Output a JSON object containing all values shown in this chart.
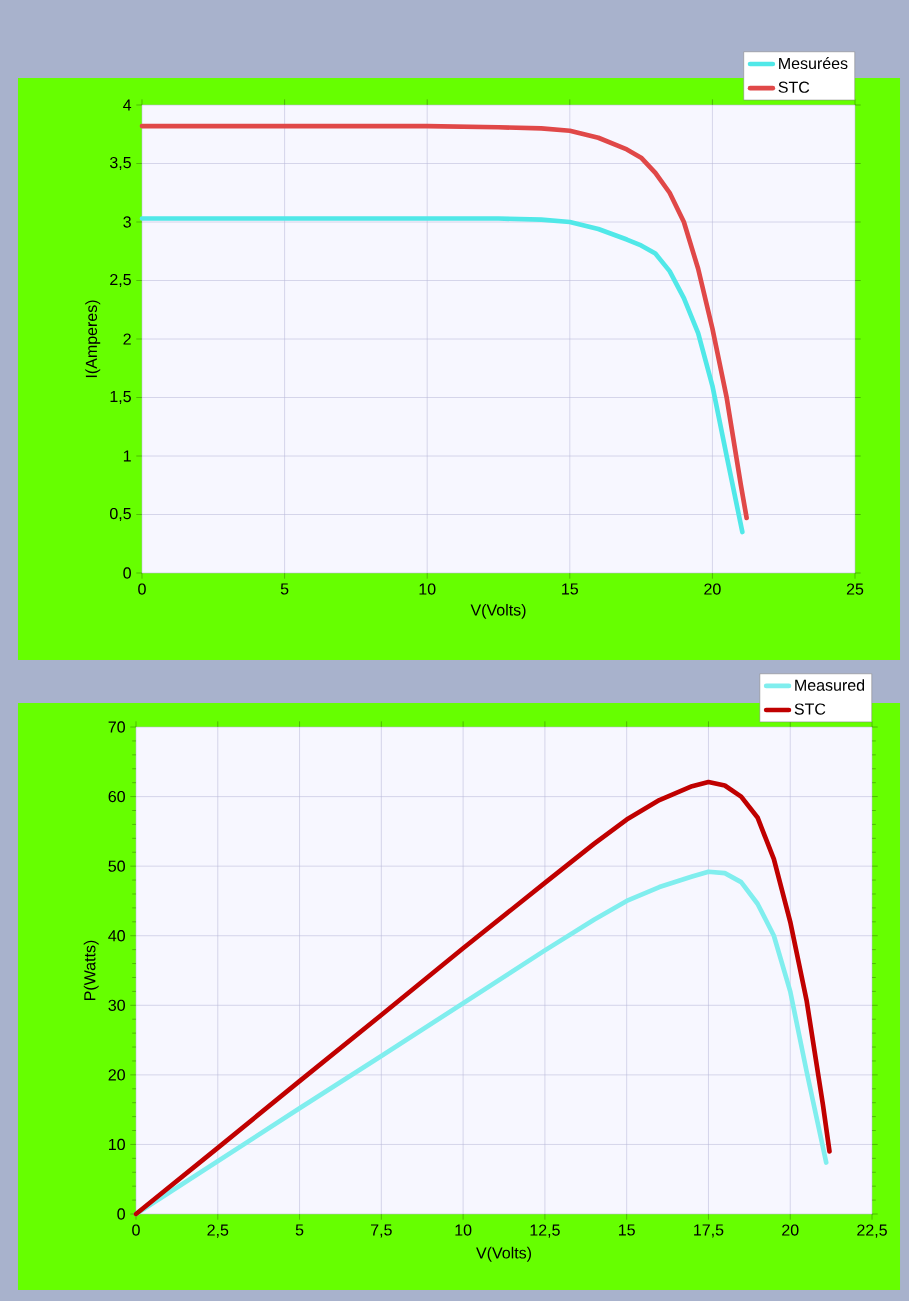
{
  "chart_data": [
    {
      "type": "line",
      "xlabel": "V(Volts)",
      "ylabel": "I(Amperes)",
      "grid": true,
      "legend": "top right",
      "xlim": [
        0,
        25
      ],
      "xticks": [
        0,
        5,
        10,
        15,
        20,
        25
      ],
      "ylim": [
        0,
        4
      ],
      "yticks": [
        0,
        {
          "value": 0.5,
          "label": "0,5"
        },
        1,
        {
          "value": 1.5,
          "label": "1,5"
        },
        2,
        {
          "value": 2.5,
          "label": "2,5"
        },
        3,
        {
          "value": 3.5,
          "label": "3,5"
        },
        4
      ],
      "series": [
        {
          "name": "Mesurées",
          "color": "#50e8e8",
          "x": [
            0,
            5,
            10,
            12.5,
            14,
            15,
            16,
            17,
            17.5,
            18,
            18.5,
            19,
            19.5,
            20,
            20.5,
            21.05
          ],
          "values": [
            3.03,
            3.03,
            3.03,
            3.03,
            3.02,
            3.0,
            2.94,
            2.85,
            2.8,
            2.73,
            2.58,
            2.35,
            2.05,
            1.6,
            1.0,
            0.35
          ]
        },
        {
          "name": "STC",
          "color": "#e04848",
          "x": [
            0,
            5,
            10,
            12.5,
            14,
            15,
            16,
            17,
            17.5,
            18,
            18.5,
            19,
            19.5,
            20,
            20.5,
            21,
            21.2
          ],
          "values": [
            3.82,
            3.82,
            3.82,
            3.81,
            3.8,
            3.78,
            3.72,
            3.62,
            3.55,
            3.42,
            3.25,
            3.0,
            2.6,
            2.09,
            1.5,
            0.75,
            0.47
          ]
        }
      ]
    },
    {
      "type": "line",
      "xlabel": "V(Volts)",
      "ylabel": "P(Watts)",
      "grid": true,
      "legend": "top right",
      "xlim": [
        0,
        22.5
      ],
      "xticks": [
        0,
        {
          "value": 2.5,
          "label": "2,5"
        },
        5,
        {
          "value": 7.5,
          "label": "7,5"
        },
        10,
        {
          "value": 12.5,
          "label": "12,5"
        },
        15,
        {
          "value": 17.5,
          "label": "17,5"
        },
        20,
        {
          "value": 22.5,
          "label": "22,5"
        }
      ],
      "ylim": [
        0,
        70
      ],
      "yticks": [
        0,
        10,
        20,
        30,
        40,
        50,
        60,
        70
      ],
      "series": [
        {
          "name": "Measured",
          "color": "#80eeee",
          "x": [
            0,
            2.5,
            5,
            7.5,
            10,
            12.5,
            14,
            15,
            16,
            17,
            17.5,
            18,
            18.5,
            19,
            19.5,
            20,
            20.5,
            21.1
          ],
          "values": [
            0,
            7.6,
            15.2,
            22.7,
            30.3,
            37.9,
            42.3,
            45,
            47,
            48.5,
            49.2,
            49,
            47.7,
            44.6,
            40,
            32,
            20.5,
            7.4
          ]
        },
        {
          "name": "STC",
          "color": "#c00000",
          "x": [
            0,
            2.5,
            5,
            7.5,
            10,
            12.5,
            14,
            15,
            16,
            17,
            17.5,
            18,
            18.5,
            19,
            19.5,
            20,
            20.5,
            21,
            21.2
          ],
          "values": [
            0,
            9.5,
            19.1,
            28.6,
            38.2,
            47.6,
            53.2,
            56.7,
            59.5,
            61.5,
            62.1,
            61.6,
            60,
            57,
            51,
            42,
            30.7,
            15.7,
            9
          ]
        }
      ]
    }
  ]
}
